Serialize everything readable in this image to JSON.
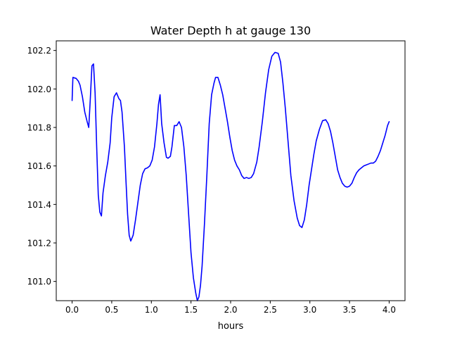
{
  "chart_data": {
    "type": "line",
    "title": "Water Depth h at gauge 130",
    "xlabel": "hours",
    "ylabel": "",
    "xlim": [
      -0.2,
      4.2
    ],
    "ylim": [
      100.9,
      102.25
    ],
    "grid": false,
    "x_ticks": [
      0.0,
      0.5,
      1.0,
      1.5,
      2.0,
      2.5,
      3.0,
      3.5,
      4.0
    ],
    "x_tick_labels": [
      "0.0",
      "0.5",
      "1.0",
      "1.5",
      "2.0",
      "2.5",
      "3.0",
      "3.5",
      "4.0"
    ],
    "y_ticks": [
      101.0,
      101.2,
      101.4,
      101.6,
      101.8,
      102.0,
      102.2
    ],
    "y_tick_labels": [
      "101.0",
      "101.2",
      "101.4",
      "101.6",
      "101.8",
      "102.0",
      "102.2"
    ],
    "series": [
      {
        "name": "",
        "color": "#0000ff",
        "points": [
          [
            0.0,
            101.94
          ],
          [
            0.01,
            102.06
          ],
          [
            0.05,
            102.055
          ],
          [
            0.08,
            102.04
          ],
          [
            0.1,
            102.02
          ],
          [
            0.13,
            101.96
          ],
          [
            0.16,
            101.88
          ],
          [
            0.19,
            101.83
          ],
          [
            0.21,
            101.8
          ],
          [
            0.23,
            101.95
          ],
          [
            0.25,
            102.12
          ],
          [
            0.27,
            102.13
          ],
          [
            0.29,
            101.98
          ],
          [
            0.31,
            101.7
          ],
          [
            0.33,
            101.45
          ],
          [
            0.35,
            101.36
          ],
          [
            0.37,
            101.34
          ],
          [
            0.39,
            101.46
          ],
          [
            0.42,
            101.55
          ],
          [
            0.45,
            101.62
          ],
          [
            0.48,
            101.72
          ],
          [
            0.5,
            101.85
          ],
          [
            0.53,
            101.96
          ],
          [
            0.56,
            101.98
          ],
          [
            0.59,
            101.95
          ],
          [
            0.61,
            101.94
          ],
          [
            0.63,
            101.88
          ],
          [
            0.66,
            101.7
          ],
          [
            0.68,
            101.52
          ],
          [
            0.7,
            101.35
          ],
          [
            0.72,
            101.24
          ],
          [
            0.74,
            101.21
          ],
          [
            0.77,
            101.24
          ],
          [
            0.8,
            101.32
          ],
          [
            0.83,
            101.41
          ],
          [
            0.86,
            101.5
          ],
          [
            0.89,
            101.56
          ],
          [
            0.92,
            101.585
          ],
          [
            0.95,
            101.59
          ],
          [
            0.98,
            101.6
          ],
          [
            1.01,
            101.63
          ],
          [
            1.04,
            101.7
          ],
          [
            1.07,
            101.82
          ],
          [
            1.09,
            101.92
          ],
          [
            1.11,
            101.97
          ],
          [
            1.13,
            101.82
          ],
          [
            1.16,
            101.72
          ],
          [
            1.19,
            101.645
          ],
          [
            1.21,
            101.64
          ],
          [
            1.24,
            101.65
          ],
          [
            1.26,
            101.7
          ],
          [
            1.29,
            101.81
          ],
          [
            1.32,
            101.81
          ],
          [
            1.35,
            101.83
          ],
          [
            1.38,
            101.8
          ],
          [
            1.41,
            101.7
          ],
          [
            1.44,
            101.55
          ],
          [
            1.47,
            101.35
          ],
          [
            1.5,
            101.15
          ],
          [
            1.53,
            101.02
          ],
          [
            1.56,
            100.94
          ],
          [
            1.58,
            100.9
          ],
          [
            1.6,
            100.92
          ],
          [
            1.62,
            100.98
          ],
          [
            1.64,
            101.08
          ],
          [
            1.67,
            101.3
          ],
          [
            1.7,
            101.55
          ],
          [
            1.73,
            101.82
          ],
          [
            1.76,
            101.97
          ],
          [
            1.79,
            102.03
          ],
          [
            1.81,
            102.06
          ],
          [
            1.84,
            102.06
          ],
          [
            1.87,
            102.02
          ],
          [
            1.9,
            101.97
          ],
          [
            1.93,
            101.9
          ],
          [
            1.96,
            101.83
          ],
          [
            1.99,
            101.75
          ],
          [
            2.02,
            101.68
          ],
          [
            2.05,
            101.63
          ],
          [
            2.08,
            101.6
          ],
          [
            2.11,
            101.58
          ],
          [
            2.14,
            101.55
          ],
          [
            2.17,
            101.535
          ],
          [
            2.2,
            101.54
          ],
          [
            2.23,
            101.535
          ],
          [
            2.26,
            101.54
          ],
          [
            2.29,
            101.56
          ],
          [
            2.33,
            101.62
          ],
          [
            2.36,
            101.7
          ],
          [
            2.4,
            101.83
          ],
          [
            2.44,
            101.98
          ],
          [
            2.48,
            102.1
          ],
          [
            2.52,
            102.17
          ],
          [
            2.56,
            102.19
          ],
          [
            2.6,
            102.185
          ],
          [
            2.63,
            102.14
          ],
          [
            2.66,
            102.03
          ],
          [
            2.69,
            101.9
          ],
          [
            2.73,
            101.7
          ],
          [
            2.76,
            101.55
          ],
          [
            2.8,
            101.42
          ],
          [
            2.84,
            101.33
          ],
          [
            2.87,
            101.29
          ],
          [
            2.9,
            101.28
          ],
          [
            2.93,
            101.32
          ],
          [
            2.96,
            101.4
          ],
          [
            2.99,
            101.5
          ],
          [
            3.02,
            101.58
          ],
          [
            3.05,
            101.66
          ],
          [
            3.08,
            101.73
          ],
          [
            3.12,
            101.79
          ],
          [
            3.16,
            101.835
          ],
          [
            3.2,
            101.84
          ],
          [
            3.23,
            101.82
          ],
          [
            3.26,
            101.78
          ],
          [
            3.29,
            101.72
          ],
          [
            3.32,
            101.65
          ],
          [
            3.35,
            101.58
          ],
          [
            3.38,
            101.54
          ],
          [
            3.41,
            101.51
          ],
          [
            3.44,
            101.495
          ],
          [
            3.47,
            101.49
          ],
          [
            3.5,
            101.495
          ],
          [
            3.53,
            101.51
          ],
          [
            3.56,
            101.54
          ],
          [
            3.59,
            101.565
          ],
          [
            3.62,
            101.58
          ],
          [
            3.65,
            101.59
          ],
          [
            3.68,
            101.6
          ],
          [
            3.71,
            101.605
          ],
          [
            3.74,
            101.61
          ],
          [
            3.77,
            101.615
          ],
          [
            3.8,
            101.615
          ],
          [
            3.83,
            101.625
          ],
          [
            3.86,
            101.65
          ],
          [
            3.89,
            101.68
          ],
          [
            3.92,
            101.72
          ],
          [
            3.95,
            101.76
          ],
          [
            3.98,
            101.81
          ],
          [
            4.0,
            101.83
          ]
        ]
      }
    ]
  }
}
